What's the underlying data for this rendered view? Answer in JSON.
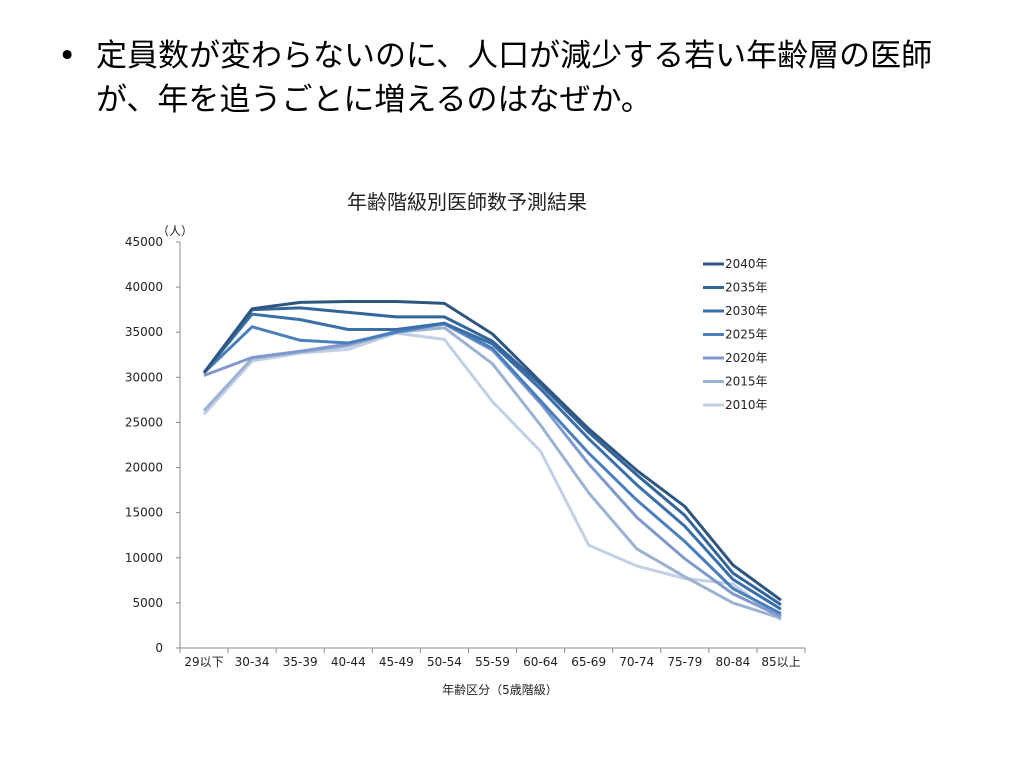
{
  "slide": {
    "bullet_symbol": "•",
    "bullet_text": "定員数が変わらないのに、人口が減少する若い年齢層の医師が、年を追うごとに増えるのはなぜか。"
  },
  "chart_data": {
    "type": "line",
    "title": "年齢階級別医師数予測結果",
    "xlabel": "年齢区分（5歳階級）",
    "ylabel": "（人）",
    "ylim": [
      0,
      45000
    ],
    "yticks": [
      0,
      5000,
      10000,
      15000,
      20000,
      25000,
      30000,
      35000,
      40000,
      45000
    ],
    "grid": false,
    "legend_position": "top-right",
    "categories": [
      "29以下",
      "30-34",
      "35-39",
      "40-44",
      "45-49",
      "50-54",
      "55-59",
      "60-64",
      "65-69",
      "70-74",
      "75-79",
      "80-84",
      "85以上"
    ],
    "series": [
      {
        "name": "2040年",
        "color": "#2e5680",
        "values": [
          30500,
          37600,
          38300,
          38400,
          38400,
          38200,
          34800,
          29500,
          24300,
          19700,
          15700,
          9200,
          5300
        ]
      },
      {
        "name": "2035年",
        "color": "#34659a",
        "values": [
          30500,
          37500,
          37700,
          37200,
          36700,
          36700,
          34000,
          29200,
          23900,
          19200,
          14700,
          8300,
          4800
        ]
      },
      {
        "name": "2030年",
        "color": "#3b6fa9",
        "values": [
          30500,
          37000,
          36400,
          35300,
          35300,
          36000,
          33700,
          28700,
          23200,
          18100,
          13500,
          7600,
          4300
        ]
      },
      {
        "name": "2025年",
        "color": "#4a7fbb",
        "values": [
          30500,
          35600,
          34100,
          33800,
          35000,
          36000,
          33200,
          27400,
          21600,
          16400,
          11800,
          6600,
          3800
        ]
      },
      {
        "name": "2020年",
        "color": "#7f99cd",
        "values": [
          30200,
          32200,
          32900,
          33700,
          35100,
          35900,
          33000,
          27100,
          20400,
          14500,
          9900,
          6000,
          3500
        ]
      },
      {
        "name": "2015年",
        "color": "#9bb2d3",
        "values": [
          26300,
          32100,
          32800,
          33500,
          35000,
          35500,
          31500,
          24700,
          17200,
          11000,
          7900,
          5000,
          3300
        ]
      },
      {
        "name": "2010年",
        "color": "#c2d0e6",
        "values": [
          25900,
          31800,
          32700,
          33100,
          34900,
          34200,
          27300,
          21800,
          11400,
          9100,
          7700,
          7100,
          3100
        ]
      }
    ]
  }
}
